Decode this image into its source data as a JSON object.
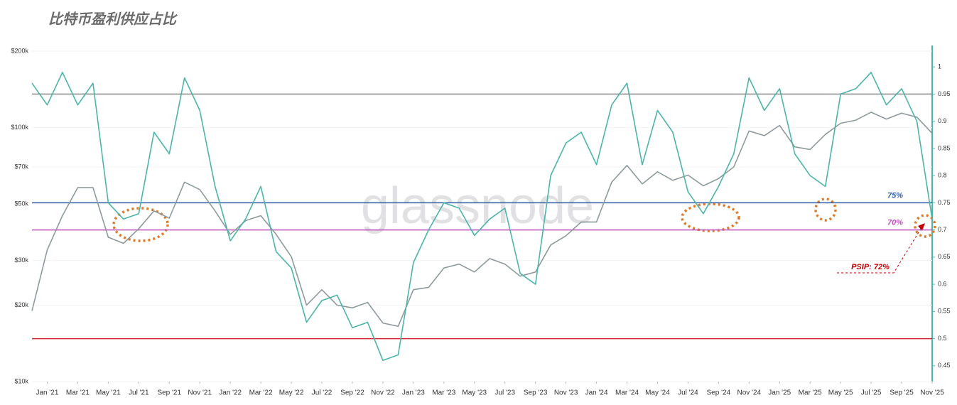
{
  "chart_data": {
    "type": "line",
    "title": "比特币盈利供应占比",
    "watermark": "glassnode",
    "x": [
      "2020-12",
      "2021-01",
      "2021-02",
      "2021-03",
      "2021-04",
      "2021-05",
      "2021-06",
      "2021-07",
      "2021-08",
      "2021-09",
      "2021-10",
      "2021-11",
      "2021-12",
      "2022-01",
      "2022-02",
      "2022-03",
      "2022-04",
      "2022-05",
      "2022-06",
      "2022-07",
      "2022-08",
      "2022-09",
      "2022-10",
      "2022-11",
      "2022-12",
      "2023-01",
      "2023-02",
      "2023-03",
      "2023-04",
      "2023-05",
      "2023-06",
      "2023-07",
      "2023-08",
      "2023-09",
      "2023-10",
      "2023-11",
      "2023-12",
      "2024-01",
      "2024-02",
      "2024-03",
      "2024-04",
      "2024-05",
      "2024-06",
      "2024-07",
      "2024-08",
      "2024-09",
      "2024-10",
      "2024-11",
      "2024-12",
      "2025-01",
      "2025-02",
      "2025-03",
      "2025-04",
      "2025-05",
      "2025-06",
      "2025-07",
      "2025-08",
      "2025-09",
      "2025-10",
      "2025-11"
    ],
    "xlim": [
      "2020-12",
      "2025-11"
    ],
    "xticks": [
      {
        "value": "2021-01",
        "label": "Jan '21"
      },
      {
        "value": "2021-03",
        "label": "Mar '21"
      },
      {
        "value": "2021-05",
        "label": "May '21"
      },
      {
        "value": "2021-07",
        "label": "Jul '21"
      },
      {
        "value": "2021-09",
        "label": "Sep '21"
      },
      {
        "value": "2021-11",
        "label": "Nov '21"
      },
      {
        "value": "2022-01",
        "label": "Jan '22"
      },
      {
        "value": "2022-03",
        "label": "Mar '22"
      },
      {
        "value": "2022-05",
        "label": "May '22"
      },
      {
        "value": "2022-07",
        "label": "Jul '22"
      },
      {
        "value": "2022-09",
        "label": "Sep '22"
      },
      {
        "value": "2022-11",
        "label": "Nov '22"
      },
      {
        "value": "2023-01",
        "label": "Jan '23"
      },
      {
        "value": "2023-03",
        "label": "Mar '23"
      },
      {
        "value": "2023-05",
        "label": "May '23"
      },
      {
        "value": "2023-07",
        "label": "Jul '23"
      },
      {
        "value": "2023-09",
        "label": "Sep '23"
      },
      {
        "value": "2023-11",
        "label": "Nov '23"
      },
      {
        "value": "2024-01",
        "label": "Jan '24"
      },
      {
        "value": "2024-03",
        "label": "Mar '24"
      },
      {
        "value": "2024-05",
        "label": "May '24"
      },
      {
        "value": "2024-07",
        "label": "Jul '24"
      },
      {
        "value": "2024-09",
        "label": "Sep '24"
      },
      {
        "value": "2024-11",
        "label": "Nov '24"
      },
      {
        "value": "2025-01",
        "label": "Jan '25"
      },
      {
        "value": "2025-03",
        "label": "Mar '25"
      },
      {
        "value": "2025-05",
        "label": "May '25"
      },
      {
        "value": "2025-07",
        "label": "Jul '25"
      },
      {
        "value": "2025-09",
        "label": "Sep '25"
      },
      {
        "value": "2025-11",
        "label": "Nov '25"
      }
    ],
    "ylim": [
      10000,
      200000
    ],
    "log_y": true,
    "yticks": [
      {
        "value": 10000,
        "label": "$10k"
      },
      {
        "value": 20000,
        "label": "$20k"
      },
      {
        "value": 30000,
        "label": "$30k"
      },
      {
        "value": 50000,
        "label": "$50k"
      },
      {
        "value": 70000,
        "label": "$70k"
      },
      {
        "value": 100000,
        "label": "$100k"
      },
      {
        "value": 200000,
        "label": "$200k"
      }
    ],
    "y2lim": [
      0.421,
      1.029
    ],
    "y2ticks": [
      0.45,
      0.5,
      0.55,
      0.6,
      0.65,
      0.7,
      0.75,
      0.8,
      0.85,
      0.9,
      0.95,
      1
    ],
    "y2_axis_color": "#4bb5aa",
    "series": [
      {
        "color": "#8f9a9c",
        "values": [
          19000,
          33000,
          45000,
          58000,
          58000,
          37000,
          35000,
          40000,
          47000,
          44000,
          61000,
          57000,
          47000,
          38000,
          43000,
          45000,
          38000,
          31000,
          20000,
          23000,
          20000,
          19500,
          20500,
          17000,
          16500,
          23000,
          23500,
          28000,
          29000,
          27000,
          30500,
          29000,
          26000,
          27000,
          34500,
          37500,
          42500,
          42500,
          61000,
          71000,
          60000,
          67000,
          62000,
          65000,
          59000,
          63000,
          70000,
          97000,
          93000,
          102000,
          84000,
          82000,
          94000,
          104000,
          107000,
          115000,
          108000,
          114000,
          110000,
          95000
        ]
      },
      {
        "color": "#4bb5aa",
        "axis": "y2",
        "values": [
          0.97,
          0.93,
          0.99,
          0.93,
          0.97,
          0.75,
          0.72,
          0.73,
          0.88,
          0.84,
          0.98,
          0.92,
          0.78,
          0.68,
          0.72,
          0.78,
          0.66,
          0.63,
          0.53,
          0.57,
          0.58,
          0.52,
          0.53,
          0.46,
          0.47,
          0.64,
          0.7,
          0.75,
          0.74,
          0.69,
          0.72,
          0.74,
          0.62,
          0.6,
          0.8,
          0.86,
          0.88,
          0.82,
          0.93,
          0.97,
          0.82,
          0.92,
          0.88,
          0.77,
          0.73,
          0.78,
          0.84,
          0.98,
          0.92,
          0.96,
          0.84,
          0.8,
          0.78,
          0.95,
          0.96,
          0.99,
          0.93,
          0.96,
          0.9,
          0.72
        ]
      }
    ],
    "hlines": [
      {
        "value": 0.95,
        "color": "#8a8a8a"
      },
      {
        "value": 0.75,
        "color": "#2f5fa8",
        "label": "75%"
      },
      {
        "value": 0.7,
        "color": "#c04fc0",
        "label": "70%"
      },
      {
        "value": 0.5,
        "color": "#d0253a"
      }
    ],
    "annotation": {
      "text": "PSIP: 72%",
      "color": "#c00000"
    }
  }
}
